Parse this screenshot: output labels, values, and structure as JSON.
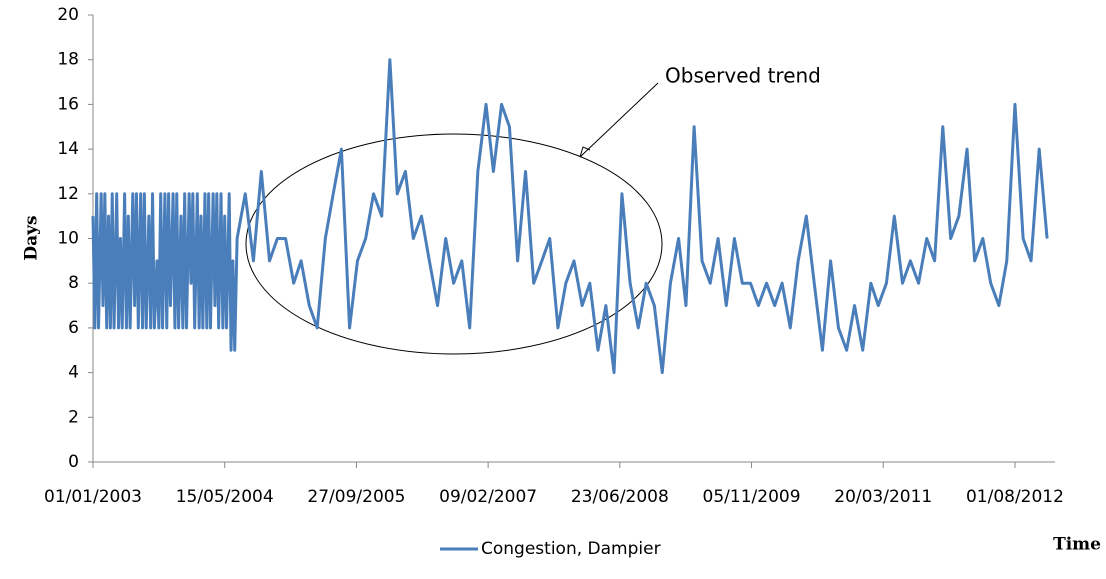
{
  "chart_data": {
    "type": "line",
    "y_label": "Days",
    "x_label": "Time",
    "annotation": "Observed trend",
    "x": [
      "01/01/2003",
      "08/01/2003",
      "15/01/2003",
      "22/01/2003",
      "01/02/2003",
      "08/02/2003",
      "15/02/2003",
      "22/02/2003",
      "01/03/2003",
      "08/03/2003",
      "15/03/2003",
      "22/03/2003",
      "01/04/2003",
      "08/04/2003",
      "15/04/2003",
      "22/04/2003",
      "01/05/2003",
      "08/05/2003",
      "15/05/2003",
      "22/05/2003",
      "01/06/2003",
      "08/06/2003",
      "15/06/2003",
      "22/06/2003",
      "01/07/2003",
      "08/07/2003",
      "15/07/2003",
      "22/07/2003",
      "01/08/2003",
      "08/08/2003",
      "15/08/2003",
      "22/08/2003",
      "01/09/2003",
      "08/09/2003",
      "15/09/2003",
      "22/09/2003",
      "01/10/2003",
      "08/10/2003",
      "15/10/2003",
      "22/10/2003",
      "01/11/2003",
      "08/11/2003",
      "15/11/2003",
      "22/11/2003",
      "01/12/2003",
      "08/12/2003",
      "15/12/2003",
      "22/12/2003",
      "01/01/2004",
      "08/01/2004",
      "15/01/2004",
      "22/01/2004",
      "01/02/2004",
      "08/02/2004",
      "15/02/2004",
      "22/02/2004",
      "01/03/2004",
      "08/03/2004",
      "15/03/2004",
      "22/03/2004",
      "01/04/2004",
      "08/04/2004",
      "15/04/2004",
      "22/04/2004",
      "01/05/2004",
      "08/05/2004",
      "15/05/2004",
      "22/05/2004",
      "01/06/2004",
      "08/06/2004",
      "15/06/2004",
      "22/06/2004",
      "01/07/2004",
      "01/08/2004",
      "01/09/2004",
      "01/10/2004",
      "01/11/2004",
      "01/12/2004",
      "01/01/2005",
      "01/02/2005",
      "01/03/2005",
      "01/04/2005",
      "01/05/2005",
      "01/06/2005",
      "01/07/2005",
      "01/08/2005",
      "01/09/2005",
      "01/10/2005",
      "01/11/2005",
      "01/12/2005",
      "01/01/2006",
      "01/02/2006",
      "01/03/2006",
      "01/04/2006",
      "01/05/2006",
      "01/06/2006",
      "01/07/2006",
      "01/08/2006",
      "01/09/2006",
      "01/10/2006",
      "01/11/2006",
      "01/12/2006",
      "01/01/2007",
      "01/02/2007",
      "01/03/2007",
      "01/04/2007",
      "01/05/2007",
      "01/06/2007",
      "01/07/2007",
      "01/08/2007",
      "01/09/2007",
      "01/10/2007",
      "01/11/2007",
      "01/12/2007",
      "01/01/2008",
      "01/02/2008",
      "01/03/2008",
      "01/04/2008",
      "01/05/2008",
      "01/06/2008",
      "01/07/2008",
      "01/08/2008",
      "01/09/2008",
      "01/10/2008",
      "01/11/2008",
      "01/12/2008",
      "01/01/2009",
      "01/02/2009",
      "01/03/2009",
      "01/04/2009",
      "01/05/2009",
      "01/06/2009",
      "01/07/2009",
      "01/08/2009",
      "01/09/2009",
      "01/10/2009",
      "01/11/2009",
      "01/12/2009",
      "01/01/2010",
      "01/02/2010",
      "01/03/2010",
      "01/04/2010",
      "01/05/2010",
      "01/06/2010",
      "01/07/2010",
      "01/08/2010",
      "01/09/2010",
      "01/10/2010",
      "01/11/2010",
      "01/12/2010",
      "01/01/2011",
      "01/02/2011",
      "01/03/2011",
      "01/04/2011",
      "01/05/2011",
      "01/06/2011",
      "01/07/2011",
      "01/08/2011",
      "01/09/2011",
      "01/10/2011",
      "01/11/2011",
      "01/12/2011",
      "01/01/2012",
      "01/02/2012",
      "01/03/2012",
      "01/04/2012",
      "01/05/2012",
      "01/06/2012",
      "01/07/2012",
      "01/08/2012",
      "01/09/2012",
      "01/10/2012",
      "01/11/2012",
      "01/12/2012"
    ],
    "series": [
      {
        "name": "Congestion, Dampier",
        "color": "#4a7ebb",
        "values": [
          11,
          6,
          12,
          6,
          12,
          7,
          12,
          6,
          11,
          6,
          12,
          6,
          12,
          6,
          10,
          6,
          12,
          6,
          11,
          6,
          12,
          7,
          12,
          6,
          12,
          6,
          12,
          6,
          11,
          6,
          12,
          6,
          9,
          6,
          12,
          6,
          12,
          6,
          12,
          7,
          12,
          6,
          12,
          6,
          11,
          6,
          12,
          6,
          12,
          8,
          12,
          6,
          12,
          6,
          11,
          6,
          12,
          6,
          12,
          6,
          12,
          7,
          12,
          6,
          12,
          6,
          11,
          6,
          12,
          5,
          9,
          5,
          10,
          12,
          9,
          13,
          9,
          10,
          10,
          8,
          9,
          7,
          6,
          10,
          12,
          14,
          6,
          9,
          10,
          12,
          11,
          18,
          12,
          13,
          10,
          11,
          9,
          7,
          10,
          8,
          9,
          6,
          13,
          16,
          13,
          16,
          15,
          9,
          13,
          8,
          9,
          10,
          6,
          8,
          9,
          7,
          8,
          5,
          7,
          4,
          12,
          8,
          6,
          8,
          7,
          4,
          8,
          10,
          7,
          15,
          9,
          8,
          10,
          7,
          10,
          8,
          8,
          7,
          8,
          7,
          8,
          6,
          9,
          11,
          8,
          5,
          9,
          6,
          5,
          7,
          5,
          8,
          7,
          8,
          11,
          8,
          9,
          8,
          10,
          9,
          15,
          10,
          11,
          14,
          9,
          10,
          8,
          7,
          9,
          16,
          10,
          9,
          14,
          10
        ]
      }
    ],
    "xlim": [
      "01/01/2003",
      "31/12/2012"
    ],
    "xticks": [
      "01/01/2003",
      "15/05/2004",
      "27/09/2005",
      "09/02/2007",
      "23/06/2008",
      "05/11/2009",
      "20/03/2011",
      "01/08/2012"
    ],
    "ylim": [
      0,
      20
    ],
    "yticks": [
      0,
      2,
      4,
      6,
      8,
      10,
      12,
      14,
      16,
      18,
      20
    ],
    "grid": false
  }
}
